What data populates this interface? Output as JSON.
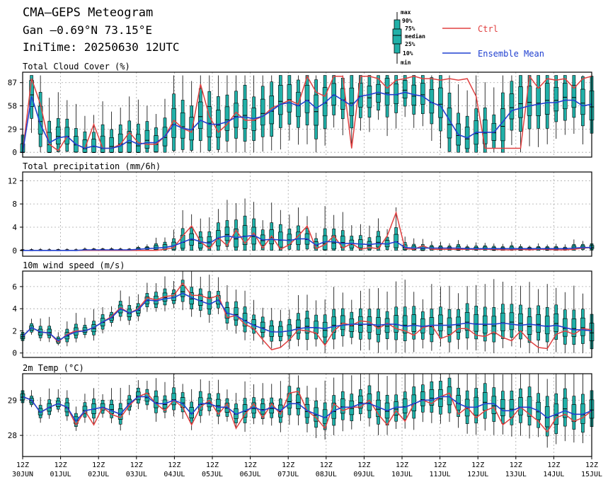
{
  "header": {
    "title": "CMA—GEPS Meteogram",
    "location": "Gan —0.69°N 73.15°E",
    "init_time": "IniTime: 20250630 12UTC"
  },
  "legend": {
    "box_labels": [
      "max",
      "90%",
      "75%",
      "median",
      "25%",
      "10%",
      "min"
    ],
    "ctrl_label": "Ctrl",
    "mean_label": "Ensemble Mean",
    "colors": {
      "ctrl": "#e04040",
      "mean": "#2040d0",
      "box": "#20b0a8",
      "box_edge": "#000000"
    }
  },
  "x_axis": {
    "ticks": [
      {
        "hour": "12Z",
        "date": "30JUN"
      },
      {
        "hour": "12Z",
        "date": "01JUL"
      },
      {
        "hour": "12Z",
        "date": "02JUL"
      },
      {
        "hour": "12Z",
        "date": "03JUL"
      },
      {
        "hour": "12Z",
        "date": "04JUL"
      },
      {
        "hour": "12Z",
        "date": "05JUL"
      },
      {
        "hour": "12Z",
        "date": "06JUL"
      },
      {
        "hour": "12Z",
        "date": "07JUL"
      },
      {
        "hour": "12Z",
        "date": "08JUL"
      },
      {
        "hour": "12Z",
        "date": "09JUL"
      },
      {
        "hour": "12Z",
        "date": "10JUL"
      },
      {
        "hour": "12Z",
        "date": "11JUL"
      },
      {
        "hour": "12Z",
        "date": "12JUL"
      },
      {
        "hour": "12Z",
        "date": "13JUL"
      },
      {
        "hour": "12Z",
        "date": "14JUL"
      },
      {
        "hour": "12Z",
        "date": "15JUL"
      }
    ]
  },
  "chart_data": [
    {
      "type": "box",
      "title": "Total Cloud Cover (%)",
      "ylim": [
        -6,
        100
      ],
      "yticks": [
        0,
        29,
        58,
        87
      ],
      "ctrl": [
        0,
        92,
        60,
        10,
        2,
        20,
        10,
        5,
        35,
        5,
        5,
        10,
        25,
        12,
        10,
        10,
        20,
        40,
        30,
        25,
        85,
        45,
        25,
        35,
        50,
        40,
        40,
        45,
        55,
        60,
        65,
        60,
        95,
        75,
        70,
        95,
        95,
        5,
        95,
        95,
        92,
        80,
        90,
        92,
        95,
        92,
        92,
        90,
        92,
        90,
        92,
        70,
        5,
        5,
        5,
        5,
        5,
        95,
        80,
        92,
        90,
        92,
        80,
        92,
        95
      ],
      "mean": [
        0,
        70,
        35,
        12,
        18,
        20,
        10,
        5,
        8,
        5,
        5,
        8,
        15,
        10,
        12,
        12,
        20,
        35,
        30,
        28,
        40,
        35,
        35,
        38,
        44,
        44,
        42,
        45,
        52,
        60,
        62,
        58,
        65,
        55,
        62,
        72,
        65,
        58,
        70,
        72,
        75,
        72,
        72,
        75,
        72,
        70,
        62,
        58,
        40,
        22,
        18,
        25,
        25,
        25,
        38,
        52,
        55,
        58,
        60,
        62,
        62,
        65,
        65,
        58,
        60
      ]
    },
    {
      "type": "box",
      "title": "Total precipitation (mm/6h)",
      "ylim": [
        -1,
        13.5
      ],
      "yticks": [
        0,
        4,
        8,
        12
      ],
      "ctrl": [
        0,
        0,
        0,
        0,
        0,
        0,
        0,
        0,
        0,
        0,
        0,
        0,
        0,
        0,
        0,
        0,
        0.2,
        0.5,
        2.5,
        4.2,
        1.5,
        0.3,
        2.2,
        0.8,
        3.5,
        1.2,
        3.0,
        0.4,
        2.5,
        0.2,
        1.0,
        2.5,
        4.2,
        0.3,
        1.0,
        2.5,
        0.4,
        1.2,
        0.2,
        0.5,
        0.3,
        2.5,
        6.5,
        0.3,
        0.2,
        0.8,
        0.2,
        0.2,
        0.2,
        0.2,
        0.2,
        0.2,
        0.2,
        0.2,
        0.1,
        0.1,
        0.2,
        0.1,
        0.2,
        0.2,
        0.1,
        0.1,
        0.2,
        0.4,
        0.5
      ],
      "mean": [
        0,
        0,
        0,
        0,
        0,
        0,
        0,
        0.1,
        0.1,
        0.1,
        0.1,
        0.1,
        0.1,
        0.2,
        0.3,
        0.4,
        0.5,
        0.8,
        1.4,
        2.0,
        1.5,
        1.2,
        2.2,
        2.5,
        2.2,
        2.4,
        2.6,
        1.8,
        1.9,
        1.8,
        1.7,
        2.0,
        2.0,
        0.9,
        1.5,
        1.5,
        1.2,
        1.2,
        1.1,
        1.0,
        1.2,
        1.1,
        1.5,
        0.5,
        0.4,
        0.4,
        0.4,
        0.4,
        0.4,
        0.4,
        0.3,
        0.3,
        0.3,
        0.3,
        0.3,
        0.3,
        0.3,
        0.3,
        0.3,
        0.3,
        0.3,
        0.3,
        0.4,
        0.5,
        0.5
      ]
    },
    {
      "type": "box",
      "title": "10m wind speed (m/s)",
      "ylim": [
        -0.4,
        7.4
      ],
      "yticks": [
        0,
        2,
        4,
        6
      ],
      "ctrl": [
        1.5,
        2.3,
        1.9,
        1.8,
        1.0,
        1.7,
        2.0,
        2.0,
        2.3,
        2.8,
        3.3,
        4.1,
        3.6,
        4.0,
        5.0,
        4.8,
        5.1,
        5.2,
        6.3,
        5.2,
        5.2,
        4.9,
        5.2,
        3.2,
        3.4,
        2.6,
        2.2,
        1.2,
        0.3,
        0.5,
        1.2,
        2.1,
        2.0,
        1.8,
        0.7,
        2.0,
        2.7,
        2.5,
        2.9,
        2.8,
        2.2,
        2.7,
        2.2,
        2.0,
        1.6,
        2.3,
        2.5,
        1.3,
        1.6,
        2.2,
        2.2,
        1.6,
        1.5,
        1.9,
        1.4,
        1.1,
        2.0,
        1.1,
        0.5,
        0.4,
        1.7,
        2.0,
        1.7,
        2.2,
        2.1
      ],
      "mean": [
        1.5,
        2.3,
        1.9,
        1.8,
        1.1,
        1.6,
        1.9,
        2.0,
        2.3,
        2.8,
        3.2,
        4.0,
        3.6,
        3.9,
        4.8,
        4.7,
        4.9,
        5.0,
        5.4,
        5.0,
        4.7,
        4.4,
        4.8,
        3.6,
        3.4,
        2.9,
        2.5,
        2.2,
        1.9,
        1.9,
        2.0,
        2.2,
        2.3,
        2.3,
        2.2,
        2.4,
        2.5,
        2.6,
        2.6,
        2.6,
        2.5,
        2.6,
        2.6,
        2.4,
        2.5,
        2.4,
        2.5,
        2.5,
        2.5,
        2.6,
        2.7,
        2.6,
        2.6,
        2.6,
        2.7,
        2.6,
        2.5,
        2.6,
        2.5,
        2.4,
        2.5,
        2.3,
        2.1,
        2.1,
        2.0
      ]
    },
    {
      "type": "box",
      "title": "2m Temp (°C)",
      "ylim": [
        27.4,
        29.75
      ],
      "yticks": [
        28,
        29
      ],
      "ctrl": [
        29.1,
        29.0,
        28.65,
        28.8,
        28.9,
        28.8,
        28.3,
        28.7,
        28.3,
        28.8,
        28.6,
        28.5,
        28.85,
        29.1,
        29.2,
        28.9,
        28.7,
        29.0,
        28.8,
        28.3,
        28.8,
        29.0,
        28.6,
        28.9,
        28.2,
        28.6,
        28.9,
        28.5,
        28.9,
        28.6,
        29.2,
        29.25,
        28.7,
        28.5,
        28.2,
        28.9,
        28.7,
        28.8,
        28.8,
        29.0,
        28.6,
        28.3,
        28.7,
        28.4,
        28.9,
        29.0,
        28.9,
        29.1,
        29.2,
        28.6,
        28.8,
        28.5,
        28.7,
        28.8,
        28.3,
        28.5,
        28.8,
        28.6,
        28.4,
        28.1,
        28.5,
        28.6,
        28.4,
        28.5,
        28.7
      ],
      "mean": [
        29.1,
        29.0,
        28.65,
        28.8,
        28.9,
        28.8,
        28.4,
        28.7,
        28.75,
        28.8,
        28.7,
        28.6,
        28.9,
        29.1,
        29.1,
        28.9,
        28.9,
        29.0,
        28.9,
        28.6,
        28.9,
        28.9,
        28.8,
        28.8,
        28.6,
        28.7,
        28.8,
        28.7,
        28.8,
        28.7,
        28.9,
        28.9,
        28.7,
        28.6,
        28.5,
        28.7,
        28.8,
        28.8,
        28.9,
        28.9,
        28.8,
        28.7,
        28.8,
        28.8,
        28.9,
        29.0,
        29.0,
        29.1,
        29.1,
        28.9,
        28.8,
        28.8,
        28.9,
        28.9,
        28.7,
        28.7,
        28.8,
        28.8,
        28.7,
        28.5,
        28.6,
        28.7,
        28.6,
        28.6,
        28.7
      ]
    }
  ]
}
